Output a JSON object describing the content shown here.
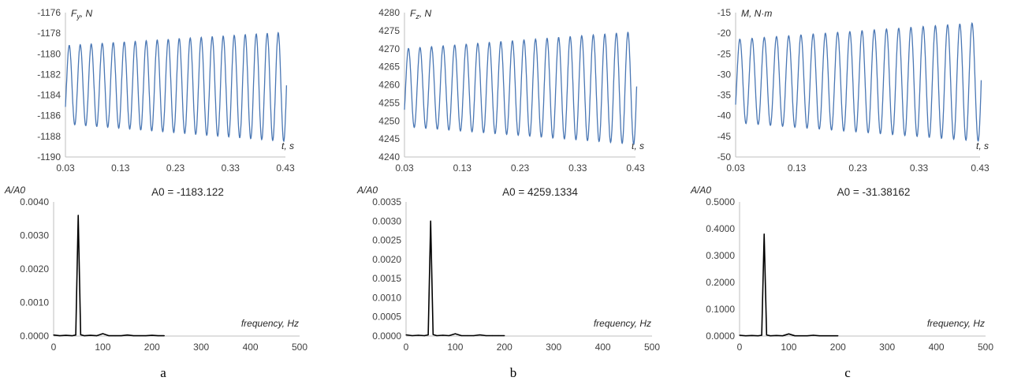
{
  "colors": {
    "signal": "#4a77b4",
    "spectrum": "#000000",
    "axis": "#bfbfbf",
    "text": "#404040"
  },
  "chart_data": [
    {
      "panel": "a",
      "type": "line",
      "ylabel_main": "F",
      "ylabel_sub": "y",
      "ylabel_unit": ", N",
      "xlabel": "t, s",
      "x_ticks": [
        "0.03",
        "0.13",
        "0.23",
        "0.33",
        "0.43"
      ],
      "y_ticks": [
        "-1176",
        "-1178",
        "-1180",
        "-1182",
        "-1184",
        "-1186",
        "-1188",
        "-1190"
      ],
      "xlim": [
        0.03,
        0.43
      ],
      "ylim": [
        -1190,
        -1176
      ],
      "series": [
        {
          "t_start": 0.03,
          "t_end": 0.432,
          "frequency_hz": 50,
          "mean_start": -1183.0,
          "mean_end": -1183.2,
          "amplitude_start": 3.8,
          "amplitude_end": 5.3
        }
      ]
    },
    {
      "panel": "a",
      "type": "line",
      "title": "A0 = -1183.122",
      "ylabel": "A/A0",
      "xlabel": "frequency, Hz",
      "x_ticks": [
        "0",
        "100",
        "200",
        "300",
        "400",
        "500"
      ],
      "y_ticks": [
        "0.0040",
        "0.0030",
        "0.0020",
        "0.0010",
        "0.0000"
      ],
      "xlim": [
        0,
        500
      ],
      "ylim": [
        0,
        0.004
      ],
      "x": [
        0,
        12.5,
        25,
        37.5,
        45,
        50,
        55,
        62.5,
        75,
        87.5,
        100,
        112.5,
        125,
        137.5,
        150,
        162.5,
        175,
        187.5,
        200,
        212.5,
        225
      ],
      "y": [
        3e-05,
        1e-05,
        2e-05,
        1e-05,
        3e-05,
        0.0036,
        4e-05,
        1e-05,
        2e-05,
        1e-05,
        7e-05,
        1e-05,
        1e-05,
        1e-05,
        3e-05,
        1e-05,
        1e-05,
        1e-05,
        2e-05,
        1e-05,
        1e-05
      ]
    },
    {
      "panel": "b",
      "type": "line",
      "ylabel_main": "F",
      "ylabel_sub": "z",
      "ylabel_unit": ", N",
      "xlabel": "t, s",
      "x_ticks": [
        "0.03",
        "0.13",
        "0.23",
        "0.33",
        "0.43"
      ],
      "y_ticks": [
        "4280",
        "4275",
        "4270",
        "4265",
        "4260",
        "4255",
        "4250",
        "4245",
        "4240"
      ],
      "xlim": [
        0.03,
        0.43
      ],
      "ylim": [
        4240,
        4280
      ],
      "series": [
        {
          "t_start": 0.03,
          "t_end": 0.432,
          "frequency_hz": 50,
          "mean_start": 4259.2,
          "mean_end": 4259.1,
          "amplitude_start": 10.8,
          "amplitude_end": 15.6
        }
      ]
    },
    {
      "panel": "b",
      "type": "line",
      "title": "A0 = 4259.1334",
      "ylabel": "A/A0",
      "xlabel": "frequency, Hz",
      "x_ticks": [
        "0",
        "100",
        "200",
        "300",
        "400",
        "500"
      ],
      "y_ticks": [
        "0.0035",
        "0.0030",
        "0.0025",
        "0.0020",
        "0.0015",
        "0.0010",
        "0.0005",
        "0.0000"
      ],
      "xlim": [
        0,
        500
      ],
      "ylim": [
        0,
        0.0035
      ],
      "x": [
        0,
        12.5,
        25,
        37.5,
        45,
        50,
        55,
        62.5,
        75,
        87.5,
        100,
        112.5,
        125,
        137.5,
        150,
        162.5,
        175,
        187.5,
        200
      ],
      "y": [
        3e-05,
        1e-05,
        2e-05,
        1e-05,
        3e-05,
        0.003,
        4e-05,
        1e-05,
        2e-05,
        1e-05,
        6e-05,
        1e-05,
        1e-05,
        1e-05,
        3e-05,
        1e-05,
        1e-05,
        1e-05,
        1e-05
      ]
    },
    {
      "panel": "c",
      "type": "line",
      "ylabel_main": "M",
      "ylabel_sub": "",
      "ylabel_unit": ", N·m",
      "xlabel": "t, s",
      "x_ticks": [
        "0.03",
        "0.13",
        "0.23",
        "0.33",
        "0.43"
      ],
      "y_ticks": [
        "-15",
        "-20",
        "-25",
        "-30",
        "-35",
        "-40",
        "-45",
        "-50"
      ],
      "xlim": [
        0.03,
        0.43
      ],
      "ylim": [
        -50,
        -15
      ],
      "series": [
        {
          "t_start": 0.03,
          "t_end": 0.432,
          "frequency_hz": 50,
          "mean_start": -31.6,
          "mean_end": -31.8,
          "amplitude_start": 10.1,
          "amplitude_end": 14.4
        }
      ]
    },
    {
      "panel": "c",
      "type": "line",
      "title": "A0 = -31.38162",
      "ylabel": "A/A0",
      "xlabel": "frequency, Hz",
      "x_ticks": [
        "0",
        "100",
        "200",
        "300",
        "400",
        "500"
      ],
      "y_ticks": [
        "0.5000",
        "0.4000",
        "0.3000",
        "0.2000",
        "0.1000",
        "0.0000"
      ],
      "xlim": [
        0,
        500
      ],
      "ylim": [
        0,
        0.5
      ],
      "x": [
        0,
        12.5,
        25,
        37.5,
        45,
        50,
        55,
        62.5,
        75,
        87.5,
        100,
        112.5,
        125,
        137.5,
        150,
        162.5,
        175,
        187.5,
        200
      ],
      "y": [
        0.003,
        0.001,
        0.002,
        0.001,
        0.003,
        0.38,
        0.004,
        0.001,
        0.002,
        0.001,
        0.008,
        0.001,
        0.001,
        0.001,
        0.003,
        0.001,
        0.001,
        0.001,
        0.001
      ]
    }
  ],
  "panel_labels": [
    "a",
    "b",
    "c"
  ]
}
